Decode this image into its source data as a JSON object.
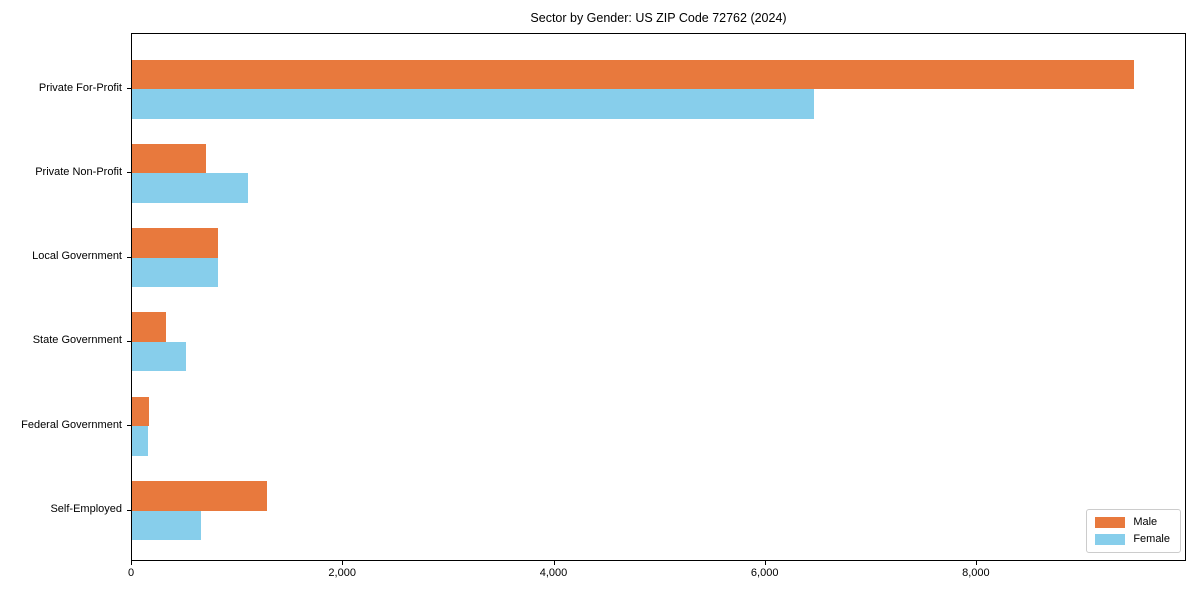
{
  "chart_data": {
    "type": "bar",
    "orientation": "horizontal",
    "title": "Sector by Gender: US ZIP Code 72762 (2024)",
    "categories": [
      "Private For-Profit",
      "Private Non-Profit",
      "Local Government",
      "State Government",
      "Federal Government",
      "Self-Employed"
    ],
    "series": [
      {
        "name": "Male",
        "color": "#e8793d",
        "values": [
          9490,
          700,
          810,
          320,
          165,
          1280
        ]
      },
      {
        "name": "Female",
        "color": "#87ceeb",
        "values": [
          6460,
          1100,
          815,
          510,
          150,
          650
        ]
      }
    ],
    "xlabel": "",
    "ylabel": "",
    "xlim": [
      0,
      9970
    ],
    "xticks": [
      {
        "value": 0,
        "label": "0"
      },
      {
        "value": 2000,
        "label": "2,000"
      },
      {
        "value": 4000,
        "label": "4,000"
      },
      {
        "value": 6000,
        "label": "6,000"
      },
      {
        "value": 8000,
        "label": "8,000"
      }
    ],
    "grid": false,
    "legend_position": "lower right",
    "frame": "full-box",
    "colors": {
      "axis": "#000000",
      "legend_border": "#cccccc",
      "background": "#ffffff"
    }
  }
}
